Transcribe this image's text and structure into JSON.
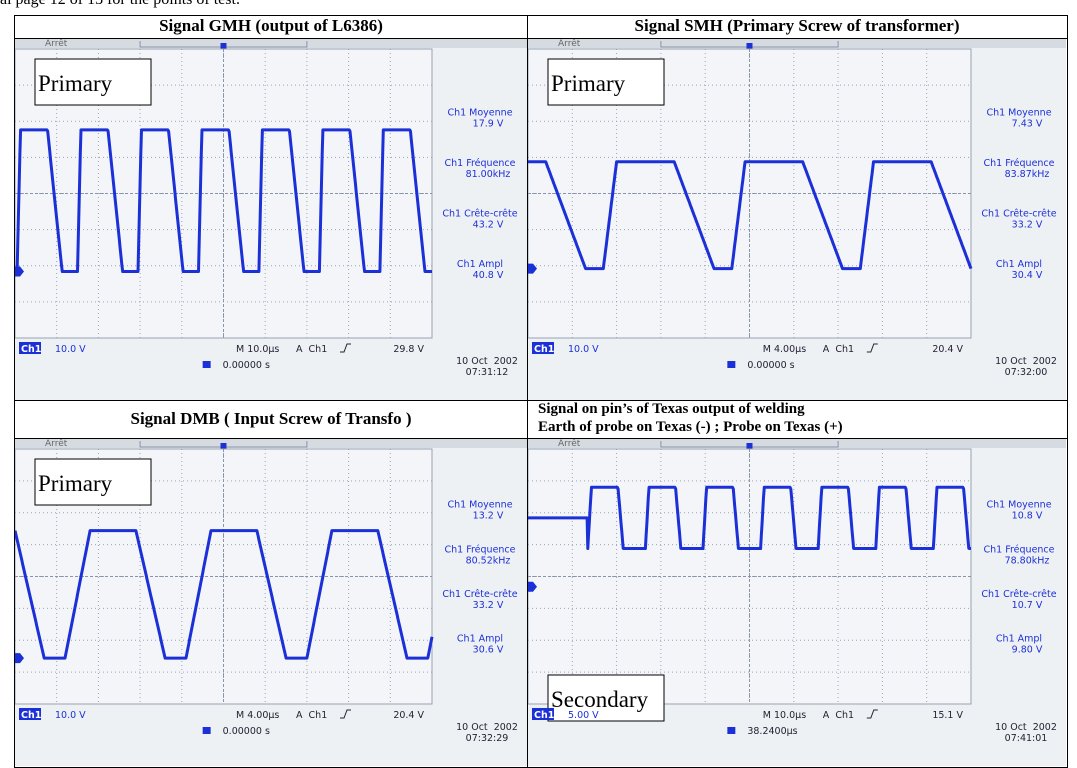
{
  "page_note": "al page 12 of 13 for the points of test.",
  "table": {
    "cells": [
      {
        "title": [
          "Signal GMH (output of L6386)"
        ],
        "label": "Primary",
        "scope": {
          "state": "Arrêt",
          "measurements": [
            {
              "name": "Ch1 Moyenne",
              "value": "17.9 V"
            },
            {
              "name": "Ch1 Fréquence",
              "value": "81.00kHz"
            },
            {
              "name": "Ch1 Crête-crête",
              "value": "43.2 V"
            },
            {
              "name": "Ch1 Ampl",
              "value": "40.8 V"
            }
          ],
          "channel": "Ch1",
          "volts_div": "10.0 V",
          "timebase": "M 10.0µs",
          "trigger": "A  Ch1",
          "level": "29.8 V",
          "offset": "0.00000 s",
          "date": "10 Oct  2002",
          "time": "07:31:12"
        }
      },
      {
        "title": [
          "Signal SMH (Primary Screw of transformer)"
        ],
        "label": "Primary",
        "scope": {
          "state": "Arrêt",
          "measurements": [
            {
              "name": "Ch1 Moyenne",
              "value": "7.43 V"
            },
            {
              "name": "Ch1 Fréquence",
              "value": "83.87kHz"
            },
            {
              "name": "Ch1 Crête-crête",
              "value": "33.2 V"
            },
            {
              "name": "Ch1 Ampl",
              "value": "30.4 V"
            }
          ],
          "channel": "Ch1",
          "volts_div": "10.0 V",
          "timebase": "M 4.00µs",
          "trigger": "A  Ch1",
          "level": "20.4 V",
          "offset": "0.00000 s",
          "date": "10 Oct  2002",
          "time": "07:32:00"
        }
      },
      {
        "title": [
          "Signal DMB  ( Input Screw of Transfo )"
        ],
        "label": "Primary",
        "scope": {
          "state": "Arrêt",
          "measurements": [
            {
              "name": "Ch1 Moyenne",
              "value": "13.2 V"
            },
            {
              "name": "Ch1 Fréquence",
              "value": "80.52kHz"
            },
            {
              "name": "Ch1 Crête-crête",
              "value": "33.2 V"
            },
            {
              "name": "Ch1 Ampl",
              "value": "30.6 V"
            }
          ],
          "channel": "Ch1",
          "volts_div": "10.0 V",
          "timebase": "M 4.00µs",
          "trigger": "A  Ch1",
          "level": "20.4 V",
          "offset": "0.00000 s",
          "date": "10 Oct  2002",
          "time": "07:32:29"
        }
      },
      {
        "title": [
          "Signal on pin’s of Texas output of welding",
          "Earth of probe on Texas (-) ; Probe on Texas (+)"
        ],
        "label": "Secondary",
        "scope": {
          "state": "Arrêt",
          "measurements": [
            {
              "name": "Ch1 Moyenne",
              "value": "10.8 V"
            },
            {
              "name": "Ch1 Fréquence",
              "value": "78.80kHz"
            },
            {
              "name": "Ch1 Crête-crête",
              "value": "10.7 V"
            },
            {
              "name": "Ch1 Ampl",
              "value": "9.80 V"
            }
          ],
          "channel": "Ch1",
          "volts_div": "5.00 V",
          "timebase": "M 10.0µs",
          "trigger": "A  Ch1",
          "level": "15.1 V",
          "offset": "38.2400µs",
          "date": "10 Oct  2002",
          "time": "07:41:01"
        }
      }
    ]
  }
}
